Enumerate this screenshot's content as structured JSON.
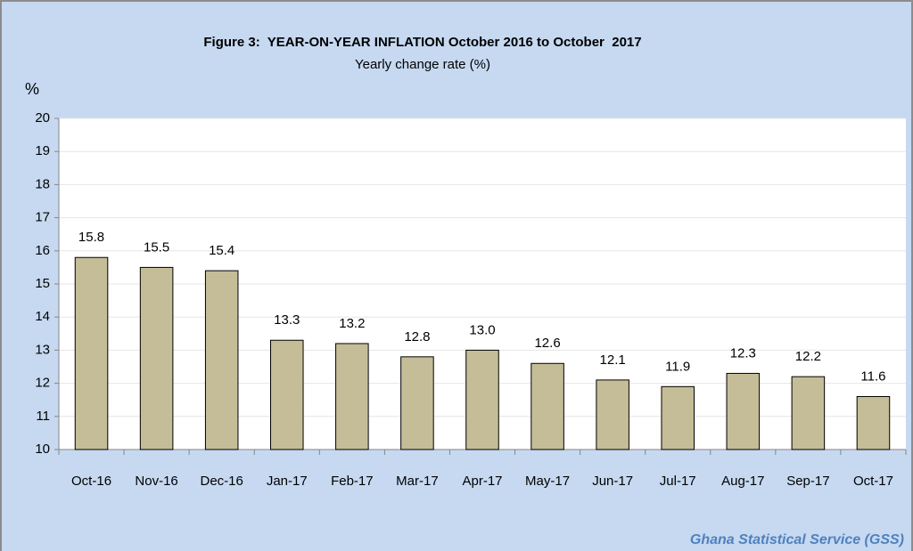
{
  "chart_data": {
    "type": "bar",
    "title": "Figure 3:  YEAR-ON-YEAR INFLATION October 2016 to October  2017",
    "subtitle": "Yearly change rate (%)",
    "y_label": "%",
    "source": "Ghana Statistical Service (GSS)",
    "categories": [
      "Oct-16",
      "Nov-16",
      "Dec-16",
      "Jan-17",
      "Feb-17",
      "Mar-17",
      "Apr-17",
      "May-17",
      "Jun-17",
      "Jul-17",
      "Aug-17",
      "Sep-17",
      "Oct-17"
    ],
    "values": [
      15.8,
      15.5,
      15.4,
      13.3,
      13.2,
      12.8,
      13.0,
      12.6,
      12.1,
      11.9,
      12.3,
      12.2,
      11.6
    ],
    "value_labels": [
      "15.8",
      "15.5",
      "15.4",
      "13.3",
      "13.2",
      "12.8",
      "13.0",
      "12.6",
      "12.1",
      "11.9",
      "12.3",
      "12.2",
      "11.6"
    ],
    "color": "#c4bd97",
    "ylim": [
      10,
      20
    ],
    "yticks": [
      10,
      11,
      12,
      13,
      14,
      15,
      16,
      17,
      18,
      19,
      20
    ],
    "grid": true
  }
}
